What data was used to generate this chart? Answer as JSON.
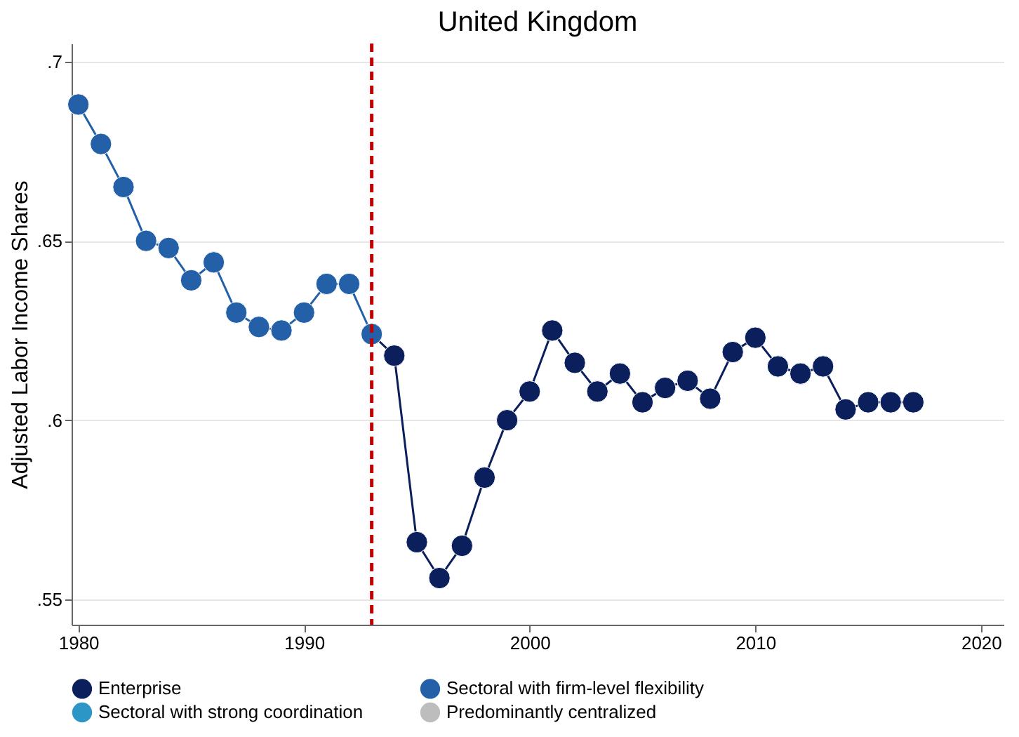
{
  "chart_data": {
    "type": "line",
    "title": "United Kingdom",
    "ylabel": "Adjusted Labor Income Shares",
    "xlim": [
      1979.7,
      2021
    ],
    "xticks": [
      1980,
      1990,
      2000,
      2010,
      2020
    ],
    "ylim": [
      0.543,
      0.705
    ],
    "yticks": [
      {
        "value": 0.55,
        "label": ".55"
      },
      {
        "value": 0.6,
        "label": ".6"
      },
      {
        "value": 0.65,
        "label": ".65"
      },
      {
        "value": 0.7,
        "label": ".7"
      }
    ],
    "grid": "y",
    "legend": "bottom",
    "marker": "circle",
    "line_style": "solid",
    "ref_lines": [
      {
        "axis": "x",
        "value": 1993,
        "label": null,
        "color": "#c00000",
        "line_style": "dashed"
      }
    ],
    "series": [
      {
        "name": "Enterprise",
        "color": "#0b1f5c",
        "x": [
          1993,
          1994,
          1995,
          1996,
          1997,
          1998,
          1999,
          2000,
          2001,
          2002,
          2003,
          2004,
          2005,
          2006,
          2007,
          2008,
          2009,
          2010,
          2011,
          2012,
          2013,
          2014,
          2015,
          2016,
          2017
        ],
        "values": [
          0.624,
          0.618,
          0.566,
          0.556,
          0.565,
          0.584,
          0.6,
          0.608,
          0.625,
          0.616,
          0.608,
          0.613,
          0.605,
          0.609,
          0.611,
          0.606,
          0.619,
          0.623,
          0.615,
          0.613,
          0.615,
          0.603,
          0.605,
          0.605,
          0.605
        ]
      },
      {
        "name": "Sectoral with firm-level flexibility",
        "color": "#2360a8",
        "x": [
          1980,
          1981,
          1982,
          1983,
          1984,
          1985,
          1986,
          1987,
          1988,
          1989,
          1990,
          1991,
          1992,
          1993
        ],
        "values": [
          0.688,
          0.677,
          0.665,
          0.65,
          0.648,
          0.639,
          0.644,
          0.63,
          0.626,
          0.625,
          0.63,
          0.638,
          0.638,
          0.624
        ]
      },
      {
        "name": "Sectoral with strong coordination",
        "color": "#2c96c6"
      },
      {
        "name": "Predominantly centralized",
        "color": "#bdbdbd"
      }
    ]
  }
}
